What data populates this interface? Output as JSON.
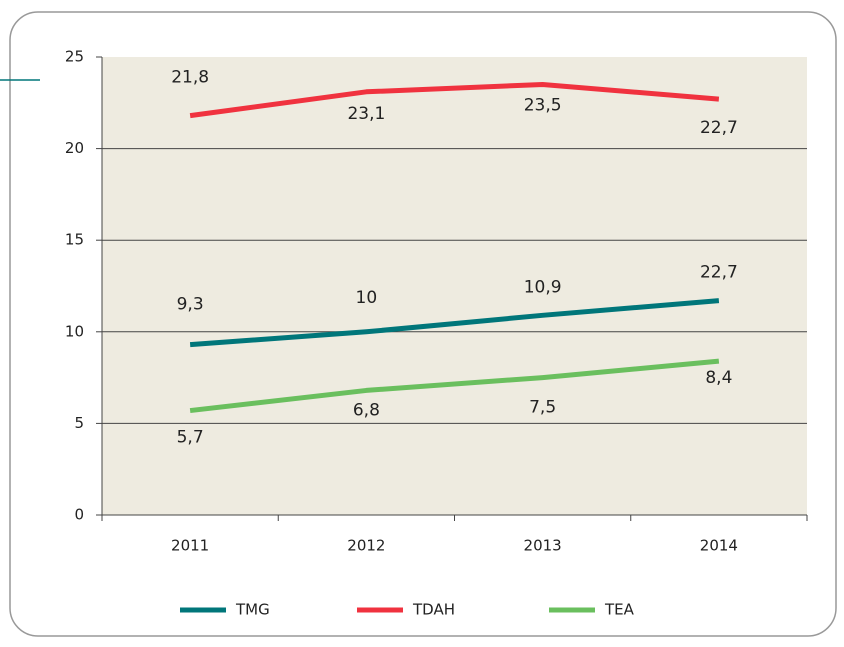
{
  "chart_data": {
    "type": "line",
    "categories": [
      "2011",
      "2012",
      "2013",
      "2014"
    ],
    "series": [
      {
        "name": "TMG",
        "color": "#00767a",
        "values": [
          9.3,
          10,
          10.9,
          11.7
        ],
        "value_labels": [
          "9,3",
          "10",
          "10,9",
          null
        ]
      },
      {
        "name": "TDAH",
        "color": "#f0323f",
        "values": [
          21.8,
          23.1,
          23.5,
          22.7
        ],
        "value_labels": [
          "21,8",
          "23,1",
          "23,5",
          "22,7"
        ]
      },
      {
        "name": "TEA",
        "color": "#6abf5e",
        "values": [
          5.7,
          6.8,
          7.5,
          8.4
        ],
        "value_labels": [
          "5,7",
          "6,8",
          "7,5",
          "8,4"
        ]
      }
    ],
    "annotations": [
      {
        "text": "22,7"
      }
    ],
    "ylim": [
      0,
      25
    ],
    "yticks": [
      0,
      5,
      10,
      15,
      20,
      25
    ],
    "grid": true,
    "legend": "bottom"
  }
}
